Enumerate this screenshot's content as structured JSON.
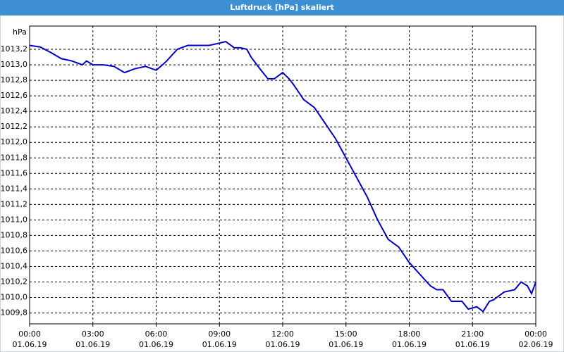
{
  "chart_data": {
    "type": "line",
    "title": "Luftdruck [hPa] skaliert",
    "y_label": "hPa",
    "x": [
      0,
      0.5,
      1,
      1.5,
      2,
      2.5,
      2.7,
      3,
      3.5,
      4,
      4.5,
      5,
      5.5,
      6,
      6.3,
      6.5,
      7,
      7.5,
      8,
      8.5,
      9,
      9.3,
      9.7,
      10,
      10.3,
      10.5,
      11,
      11.3,
      11.6,
      12,
      12.3,
      12.5,
      13,
      13.5,
      14,
      14.5,
      15,
      15.5,
      16,
      16.5,
      17,
      17.5,
      18,
      18.5,
      19,
      19.3,
      19.6,
      20,
      20.5,
      20.8,
      21.2,
      21.5,
      21.8,
      22,
      22.5,
      23,
      23.3,
      23.6,
      23.8,
      24
    ],
    "series": [
      {
        "color": "#0000c8",
        "values": [
          1013.25,
          1013.23,
          1013.16,
          1013.08,
          1013.05,
          1013.0,
          1013.05,
          1013.0,
          1013.0,
          1012.98,
          1012.9,
          1012.95,
          1012.98,
          1012.93,
          1013.0,
          1013.05,
          1013.2,
          1013.25,
          1013.25,
          1013.25,
          1013.28,
          1013.3,
          1013.22,
          1013.22,
          1013.2,
          1013.1,
          1012.92,
          1012.82,
          1012.82,
          1012.9,
          1012.82,
          1012.75,
          1012.55,
          1012.45,
          1012.25,
          1012.05,
          1011.8,
          1011.55,
          1011.3,
          1011.0,
          1010.75,
          1010.65,
          1010.45,
          1010.3,
          1010.15,
          1010.1,
          1010.1,
          1009.95,
          1009.95,
          1009.85,
          1009.88,
          1009.82,
          1009.95,
          1009.97,
          1010.07,
          1010.1,
          1010.2,
          1010.15,
          1010.05,
          1010.2
        ]
      }
    ],
    "xlim": [
      0,
      24
    ],
    "xticks": [
      {
        "value": 0,
        "label": "00:00 01.06.19"
      },
      {
        "value": 3,
        "label": "03:00 01.06.19"
      },
      {
        "value": 6,
        "label": "06:00 01.06.19"
      },
      {
        "value": 9,
        "label": "09:00 01.06.19"
      },
      {
        "value": 12,
        "label": "12:00 01.06.19"
      },
      {
        "value": 15,
        "label": "15:00 01.06.19"
      },
      {
        "value": 18,
        "label": "18:00 01.06.19"
      },
      {
        "value": 21,
        "label": "21:00 01.06.19"
      },
      {
        "value": 24,
        "label": "00:00 02.06.19"
      }
    ],
    "ylim": [
      1009.66,
      1013.5
    ],
    "yticks": [
      {
        "value": 1009.8,
        "label": "1009,8"
      },
      {
        "value": 1010.0,
        "label": "1010,0"
      },
      {
        "value": 1010.2,
        "label": "1010,2"
      },
      {
        "value": 1010.4,
        "label": "1010,4"
      },
      {
        "value": 1010.6,
        "label": "1010,6"
      },
      {
        "value": 1010.8,
        "label": "1010,8"
      },
      {
        "value": 1011.0,
        "label": "1011,0"
      },
      {
        "value": 1011.2,
        "label": "1011,2"
      },
      {
        "value": 1011.4,
        "label": "1011,4"
      },
      {
        "value": 1011.6,
        "label": "1011,6"
      },
      {
        "value": 1011.8,
        "label": "1011,8"
      },
      {
        "value": 1012.0,
        "label": "1012,0"
      },
      {
        "value": 1012.2,
        "label": "1012,2"
      },
      {
        "value": 1012.4,
        "label": "1012,4"
      },
      {
        "value": 1012.6,
        "label": "1012,6"
      },
      {
        "value": 1012.8,
        "label": "1012,8"
      },
      {
        "value": 1013.0,
        "label": "1013,0"
      },
      {
        "value": 1013.2,
        "label": "1013,2"
      }
    ],
    "grid": true
  }
}
